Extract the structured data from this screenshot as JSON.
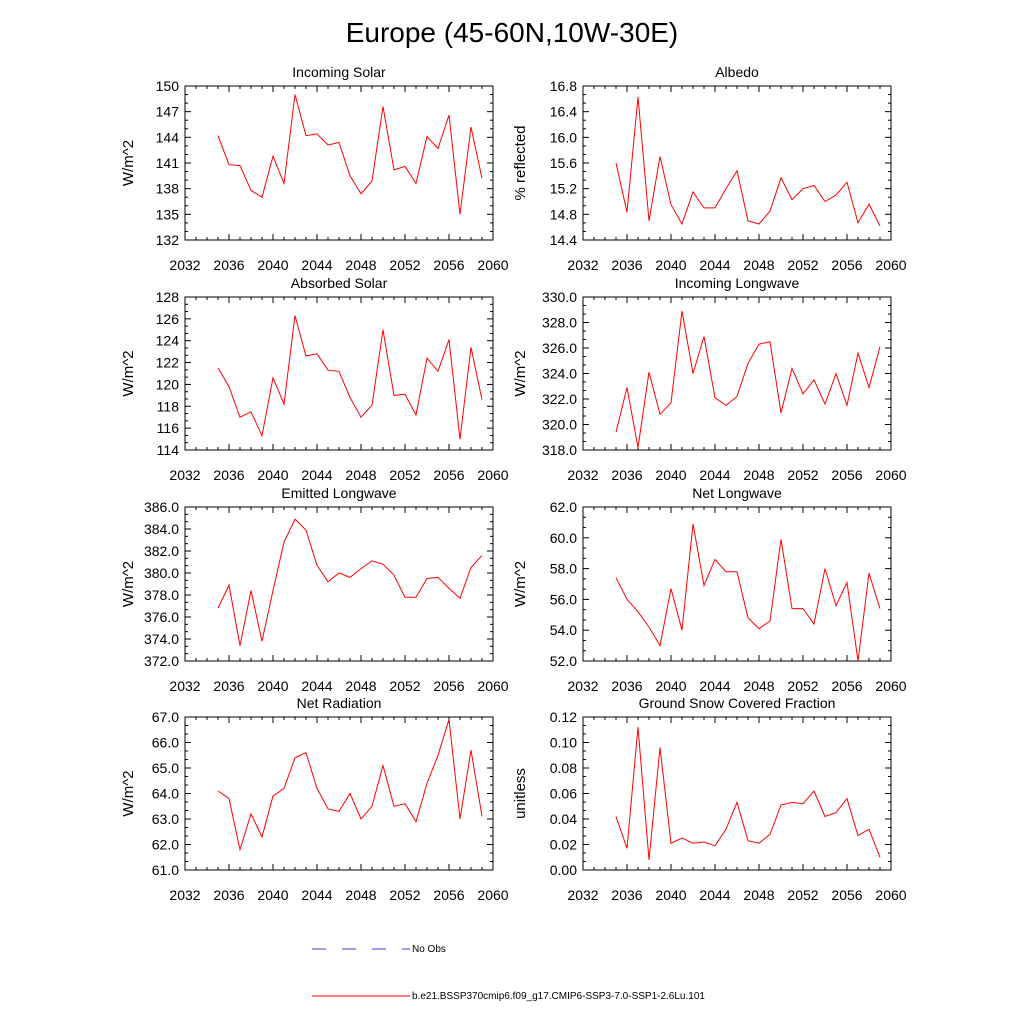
{
  "figure": {
    "title": "Europe (45-60N,10W-30E)",
    "legend": [
      {
        "label": "No Obs",
        "color": "#3c3ccf",
        "dash": true
      },
      {
        "label": "b.e21.BSSP370cmip6.f09_g17.CMIP6-SSP3-7.0-SSP1-2.6Lu.101",
        "color": "#ff0000",
        "dash": false
      }
    ],
    "series_color": "#ff0000"
  },
  "chart_data": [
    {
      "type": "line",
      "title": "Incoming Solar",
      "ylabel": "W/m^2",
      "xlim": [
        2032,
        2060
      ],
      "xticks": [
        2032,
        2036,
        2040,
        2044,
        2048,
        2052,
        2056,
        2060
      ],
      "ylim": [
        132,
        150
      ],
      "yticks": [
        132,
        135,
        138,
        141,
        144,
        147,
        150
      ],
      "ydec": 0,
      "x": [
        2035,
        2036,
        2037,
        2038,
        2039,
        2040,
        2041,
        2042,
        2043,
        2044,
        2045,
        2046,
        2047,
        2048,
        2049,
        2050,
        2051,
        2052,
        2053,
        2054,
        2055,
        2056,
        2057,
        2058,
        2059
      ],
      "y": [
        144.2,
        140.8,
        140.7,
        137.8,
        137.0,
        141.8,
        138.6,
        149.0,
        144.2,
        144.4,
        143.1,
        143.4,
        139.5,
        137.4,
        138.9,
        147.6,
        140.2,
        140.6,
        138.6,
        144.1,
        142.7,
        146.6,
        135.0,
        145.2,
        139.2
      ]
    },
    {
      "type": "line",
      "title": "Albedo",
      "ylabel": "% reflected",
      "xlim": [
        2032,
        2060
      ],
      "xticks": [
        2032,
        2036,
        2040,
        2044,
        2048,
        2052,
        2056,
        2060
      ],
      "ylim": [
        14.4,
        16.8
      ],
      "yticks": [
        14.4,
        14.8,
        15.2,
        15.6,
        16.0,
        16.4,
        16.8
      ],
      "ydec": 1,
      "x": [
        2035,
        2036,
        2037,
        2038,
        2039,
        2040,
        2041,
        2042,
        2043,
        2044,
        2045,
        2046,
        2047,
        2048,
        2049,
        2050,
        2051,
        2052,
        2053,
        2054,
        2055,
        2056,
        2057,
        2058,
        2059
      ],
      "y": [
        15.6,
        14.83,
        16.63,
        14.7,
        15.7,
        14.95,
        14.65,
        15.15,
        14.9,
        14.9,
        15.2,
        15.48,
        14.7,
        14.65,
        14.85,
        15.37,
        15.03,
        15.2,
        15.25,
        15.0,
        15.1,
        15.3,
        14.67,
        14.96,
        14.62
      ]
    },
    {
      "type": "line",
      "title": "Absorbed Solar",
      "ylabel": "W/m^2",
      "xlim": [
        2032,
        2060
      ],
      "xticks": [
        2032,
        2036,
        2040,
        2044,
        2048,
        2052,
        2056,
        2060
      ],
      "ylim": [
        114,
        128
      ],
      "yticks": [
        114,
        116,
        118,
        120,
        122,
        124,
        126,
        128
      ],
      "ydec": 0,
      "x": [
        2035,
        2036,
        2037,
        2038,
        2039,
        2040,
        2041,
        2042,
        2043,
        2044,
        2045,
        2046,
        2047,
        2048,
        2049,
        2050,
        2051,
        2052,
        2053,
        2054,
        2055,
        2056,
        2057,
        2058,
        2059
      ],
      "y": [
        121.5,
        119.8,
        117.0,
        117.5,
        115.3,
        120.6,
        118.2,
        126.3,
        122.6,
        122.8,
        121.3,
        121.2,
        118.8,
        117.0,
        118.1,
        125.0,
        119.0,
        119.1,
        117.2,
        122.4,
        121.2,
        124.1,
        115.0,
        123.4,
        118.6
      ]
    },
    {
      "type": "line",
      "title": "Incoming Longwave",
      "ylabel": "W/m^2",
      "xlim": [
        2032,
        2060
      ],
      "xticks": [
        2032,
        2036,
        2040,
        2044,
        2048,
        2052,
        2056,
        2060
      ],
      "ylim": [
        318,
        330
      ],
      "yticks": [
        318,
        320,
        322,
        324,
        326,
        328,
        330
      ],
      "ydec": 1,
      "x": [
        2035,
        2036,
        2037,
        2038,
        2039,
        2040,
        2041,
        2042,
        2043,
        2044,
        2045,
        2046,
        2047,
        2048,
        2049,
        2050,
        2051,
        2052,
        2053,
        2054,
        2055,
        2056,
        2057,
        2058,
        2059
      ],
      "y": [
        319.4,
        322.9,
        318.2,
        324.1,
        320.8,
        321.7,
        328.9,
        324.0,
        326.9,
        322.1,
        321.5,
        322.2,
        324.8,
        326.3,
        326.5,
        320.9,
        324.4,
        322.4,
        323.5,
        321.6,
        324.0,
        321.5,
        325.6,
        322.9,
        326.1
      ]
    },
    {
      "type": "line",
      "title": "Emitted Longwave",
      "ylabel": "W/m^2",
      "xlim": [
        2032,
        2060
      ],
      "xticks": [
        2032,
        2036,
        2040,
        2044,
        2048,
        2052,
        2056,
        2060
      ],
      "ylim": [
        372,
        386
      ],
      "yticks": [
        372,
        374,
        376,
        378,
        380,
        382,
        384,
        386
      ],
      "ydec": 1,
      "x": [
        2035,
        2036,
        2037,
        2038,
        2039,
        2040,
        2041,
        2042,
        2043,
        2044,
        2045,
        2046,
        2047,
        2048,
        2049,
        2050,
        2051,
        2052,
        2053,
        2054,
        2055,
        2056,
        2057,
        2058,
        2059
      ],
      "y": [
        376.8,
        378.9,
        373.4,
        378.4,
        373.8,
        378.4,
        382.8,
        384.9,
        383.9,
        380.7,
        379.2,
        380.0,
        379.6,
        380.4,
        381.1,
        380.8,
        379.8,
        377.8,
        377.8,
        379.5,
        379.6,
        378.6,
        377.7,
        380.5,
        381.6
      ]
    },
    {
      "type": "line",
      "title": "Net Longwave",
      "ylabel": "W/m^2",
      "xlim": [
        2032,
        2060
      ],
      "xticks": [
        2032,
        2036,
        2040,
        2044,
        2048,
        2052,
        2056,
        2060
      ],
      "ylim": [
        52,
        62
      ],
      "yticks": [
        52,
        54,
        56,
        58,
        60,
        62
      ],
      "ydec": 1,
      "x": [
        2035,
        2036,
        2037,
        2038,
        2039,
        2040,
        2041,
        2042,
        2043,
        2044,
        2045,
        2046,
        2047,
        2048,
        2049,
        2050,
        2051,
        2052,
        2053,
        2054,
        2055,
        2056,
        2057,
        2058,
        2059
      ],
      "y": [
        57.4,
        56.0,
        55.2,
        54.2,
        53.0,
        56.7,
        54.0,
        60.9,
        56.9,
        58.6,
        57.8,
        57.8,
        54.8,
        54.1,
        54.6,
        59.9,
        55.4,
        55.4,
        54.4,
        58.0,
        55.6,
        57.1,
        52.0,
        57.7,
        55.4
      ]
    },
    {
      "type": "line",
      "title": "Net Radiation",
      "ylabel": "W/m^2",
      "xlim": [
        2032,
        2060
      ],
      "xticks": [
        2032,
        2036,
        2040,
        2044,
        2048,
        2052,
        2056,
        2060
      ],
      "ylim": [
        61,
        67
      ],
      "yticks": [
        61,
        62,
        63,
        64,
        65,
        66,
        67
      ],
      "ydec": 1,
      "x": [
        2035,
        2036,
        2037,
        2038,
        2039,
        2040,
        2041,
        2042,
        2043,
        2044,
        2045,
        2046,
        2047,
        2048,
        2049,
        2050,
        2051,
        2052,
        2053,
        2054,
        2055,
        2056,
        2057,
        2058,
        2059
      ],
      "y": [
        64.1,
        63.8,
        61.8,
        63.2,
        62.3,
        63.9,
        64.2,
        65.4,
        65.6,
        64.2,
        63.4,
        63.3,
        64.0,
        63.0,
        63.5,
        65.1,
        63.5,
        63.6,
        62.9,
        64.4,
        65.5,
        66.9,
        63.0,
        65.7,
        63.1
      ]
    },
    {
      "type": "line",
      "title": "Ground Snow Covered Fraction",
      "ylabel": "unitless",
      "xlim": [
        2032,
        2060
      ],
      "xticks": [
        2032,
        2036,
        2040,
        2044,
        2048,
        2052,
        2056,
        2060
      ],
      "ylim": [
        0,
        0.12
      ],
      "yticks": [
        0,
        0.02,
        0.04,
        0.06,
        0.08,
        0.1,
        0.12
      ],
      "ydec": 2,
      "x": [
        2035,
        2036,
        2037,
        2038,
        2039,
        2040,
        2041,
        2042,
        2043,
        2044,
        2045,
        2046,
        2047,
        2048,
        2049,
        2050,
        2051,
        2052,
        2053,
        2054,
        2055,
        2056,
        2057,
        2058,
        2059
      ],
      "y": [
        0.042,
        0.017,
        0.112,
        0.008,
        0.096,
        0.021,
        0.025,
        0.021,
        0.022,
        0.019,
        0.032,
        0.053,
        0.023,
        0.021,
        0.028,
        0.051,
        0.053,
        0.052,
        0.062,
        0.042,
        0.045,
        0.056,
        0.027,
        0.032,
        0.01
      ]
    }
  ]
}
